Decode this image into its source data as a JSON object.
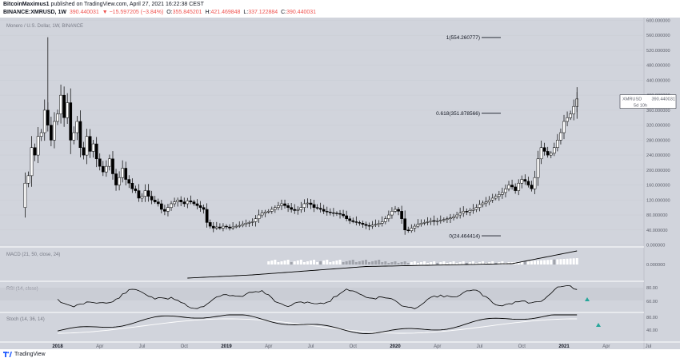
{
  "header": {
    "author": "BitcoinMaximus1",
    "published_text": "published on TradingView.com, April 27, 2021 16:22:38 CEST",
    "symbol_line": "BINANCE:XMRUSD, 1W",
    "last": "390.440031",
    "change": "▼ −15.597205 (−3.84%)",
    "o_label": "O:",
    "o_val": "355.845201",
    "h_label": "H:",
    "h_val": "421.469848",
    "l_label": "L:",
    "l_val": "337.122884",
    "c_label": "C:",
    "c_val": "390.440031"
  },
  "pane_titles": {
    "main": "Monero / U.S. Dollar, 1W, BINANCE",
    "macd": "MACD (21, 50, close, 24)",
    "rsi": "RSI (14, close)",
    "stoch": "Stoch (14, 36, 14)"
  },
  "price_label": {
    "symbol": "XMRUSD",
    "value": "390.440031",
    "countdown": "5d 10h"
  },
  "fib_labels": [
    "1(554.260777)",
    "0.618(351.878566)",
    "0(24.464414)"
  ],
  "footer": {
    "brand": "TradingView"
  },
  "colors": {
    "bg": "#d1d4dc",
    "candle_up": "#ffffff",
    "candle_down": "#000000",
    "macd_hist_pos": "#ffffff",
    "macd_hist_faded": "#a0a3ab",
    "stoch_d": "#ffffff",
    "signal_green": "#26a69a"
  },
  "chart_data": {
    "type": "candlestick",
    "title": "Monero / U.S. Dollar, 1W, BINANCE",
    "y_axis_main": [
      "600.000000",
      "560.000000",
      "520.000000",
      "480.000000",
      "440.000000",
      "400.000000",
      "360.000000",
      "320.000000",
      "280.000000",
      "240.000000",
      "200.000000",
      "160.000000",
      "120.000000",
      "80.000000",
      "40.000000",
      "0.000000"
    ],
    "ylim_main": [
      0,
      620
    ],
    "x_ticks": [
      "2018",
      "Apr",
      "Jul",
      "Oct",
      "2019",
      "Apr",
      "Jul",
      "Oct",
      "2020",
      "Apr",
      "Jul",
      "Oct",
      "2021",
      "Apr",
      "Jul"
    ],
    "x_tick_weeks": [
      0,
      13,
      26,
      39,
      52,
      65,
      78,
      91,
      104,
      117,
      130,
      143,
      156,
      169,
      182
    ],
    "x_first_week": -12,
    "close_path": [
      [
        -11,
        100
      ],
      [
        -10,
        165
      ],
      [
        -9,
        185
      ],
      [
        -8,
        260
      ],
      [
        -7,
        240
      ],
      [
        -6,
        290
      ],
      [
        -5,
        300
      ],
      [
        -4,
        360
      ],
      [
        -3,
        320
      ],
      [
        -2,
        280
      ],
      [
        -1,
        330
      ],
      [
        0,
        350
      ],
      [
        1,
        400
      ],
      [
        2,
        340
      ],
      [
        3,
        380
      ],
      [
        4,
        280
      ],
      [
        5,
        300
      ],
      [
        6,
        330
      ],
      [
        7,
        260
      ],
      [
        8,
        240
      ],
      [
        9,
        290
      ],
      [
        10,
        250
      ],
      [
        11,
        270
      ],
      [
        12,
        230
      ],
      [
        13,
        210
      ],
      [
        14,
        195
      ],
      [
        15,
        210
      ],
      [
        16,
        230
      ],
      [
        17,
        190
      ],
      [
        18,
        160
      ],
      [
        19,
        180
      ],
      [
        20,
        205
      ],
      [
        21,
        175
      ],
      [
        22,
        165
      ],
      [
        23,
        150
      ],
      [
        24,
        145
      ],
      [
        25,
        125
      ],
      [
        26,
        130
      ],
      [
        27,
        145
      ],
      [
        28,
        130
      ],
      [
        29,
        120
      ],
      [
        30,
        115
      ],
      [
        31,
        110
      ],
      [
        32,
        95
      ],
      [
        33,
        90
      ],
      [
        34,
        100
      ],
      [
        35,
        110
      ],
      [
        36,
        115
      ],
      [
        37,
        120
      ],
      [
        38,
        115
      ],
      [
        39,
        110
      ],
      [
        40,
        118
      ],
      [
        41,
        115
      ],
      [
        42,
        110
      ],
      [
        43,
        105
      ],
      [
        44,
        100
      ],
      [
        45,
        95
      ],
      [
        46,
        60
      ],
      [
        47,
        50
      ],
      [
        48,
        45
      ],
      [
        49,
        48
      ],
      [
        50,
        45
      ],
      [
        51,
        50
      ],
      [
        52,
        48
      ],
      [
        53,
        45
      ],
      [
        54,
        48
      ],
      [
        55,
        50
      ],
      [
        56,
        52
      ],
      [
        57,
        55
      ],
      [
        58,
        58
      ],
      [
        59,
        60
      ],
      [
        60,
        62
      ],
      [
        61,
        70
      ],
      [
        62,
        80
      ],
      [
        63,
        85
      ],
      [
        64,
        88
      ],
      [
        65,
        90
      ],
      [
        66,
        95
      ],
      [
        67,
        100
      ],
      [
        68,
        105
      ],
      [
        69,
        110
      ],
      [
        70,
        105
      ],
      [
        71,
        100
      ],
      [
        72,
        95
      ],
      [
        73,
        92
      ],
      [
        74,
        94
      ],
      [
        75,
        100
      ],
      [
        76,
        110
      ],
      [
        77,
        112
      ],
      [
        78,
        108
      ],
      [
        79,
        100
      ],
      [
        80,
        98
      ],
      [
        81,
        95
      ],
      [
        82,
        90
      ],
      [
        83,
        88
      ],
      [
        84,
        86
      ],
      [
        85,
        85
      ],
      [
        86,
        84
      ],
      [
        87,
        82
      ],
      [
        88,
        78
      ],
      [
        89,
        70
      ],
      [
        90,
        65
      ],
      [
        91,
        62
      ],
      [
        92,
        60
      ],
      [
        93,
        58
      ],
      [
        94,
        55
      ],
      [
        95,
        52
      ],
      [
        96,
        50
      ],
      [
        97,
        53
      ],
      [
        98,
        55
      ],
      [
        99,
        58
      ],
      [
        100,
        62
      ],
      [
        101,
        70
      ],
      [
        102,
        80
      ],
      [
        103,
        90
      ],
      [
        104,
        95
      ],
      [
        105,
        90
      ],
      [
        106,
        70
      ],
      [
        107,
        40
      ],
      [
        108,
        38
      ],
      [
        109,
        45
      ],
      [
        110,
        50
      ],
      [
        111,
        55
      ],
      [
        112,
        58
      ],
      [
        113,
        60
      ],
      [
        114,
        62
      ],
      [
        115,
        65
      ],
      [
        116,
        63
      ],
      [
        117,
        64
      ],
      [
        118,
        66
      ],
      [
        119,
        68
      ],
      [
        120,
        70
      ],
      [
        121,
        72
      ],
      [
        122,
        75
      ],
      [
        123,
        80
      ],
      [
        124,
        85
      ],
      [
        125,
        90
      ],
      [
        126,
        88
      ],
      [
        127,
        92
      ],
      [
        128,
        95
      ],
      [
        129,
        100
      ],
      [
        130,
        108
      ],
      [
        131,
        112
      ],
      [
        132,
        115
      ],
      [
        133,
        120
      ],
      [
        134,
        125
      ],
      [
        135,
        130
      ],
      [
        136,
        135
      ],
      [
        137,
        140
      ],
      [
        138,
        150
      ],
      [
        139,
        160
      ],
      [
        140,
        155
      ],
      [
        141,
        145
      ],
      [
        142,
        165
      ],
      [
        143,
        175
      ],
      [
        144,
        170
      ],
      [
        145,
        160
      ],
      [
        146,
        150
      ],
      [
        147,
        180
      ],
      [
        148,
        230
      ],
      [
        149,
        260
      ],
      [
        150,
        250
      ],
      [
        151,
        240
      ],
      [
        152,
        245
      ],
      [
        153,
        260
      ],
      [
        154,
        280
      ],
      [
        155,
        300
      ],
      [
        156,
        330
      ],
      [
        157,
        340
      ],
      [
        158,
        350
      ],
      [
        159,
        370
      ],
      [
        160,
        390
      ]
    ],
    "annotations": [
      {
        "label": "1(554.260777)",
        "price": 554.26
      },
      {
        "label": "0.618(351.878566)",
        "price": 351.88
      },
      {
        "label": "0(24.464414)",
        "price": 24.46
      }
    ],
    "macd_axis": [
      "0.000000"
    ],
    "rsi_axis": [
      "80.00",
      "60.00"
    ],
    "stoch_axis": [
      "80.00",
      "40.00"
    ],
    "last_price": 390.44
  }
}
